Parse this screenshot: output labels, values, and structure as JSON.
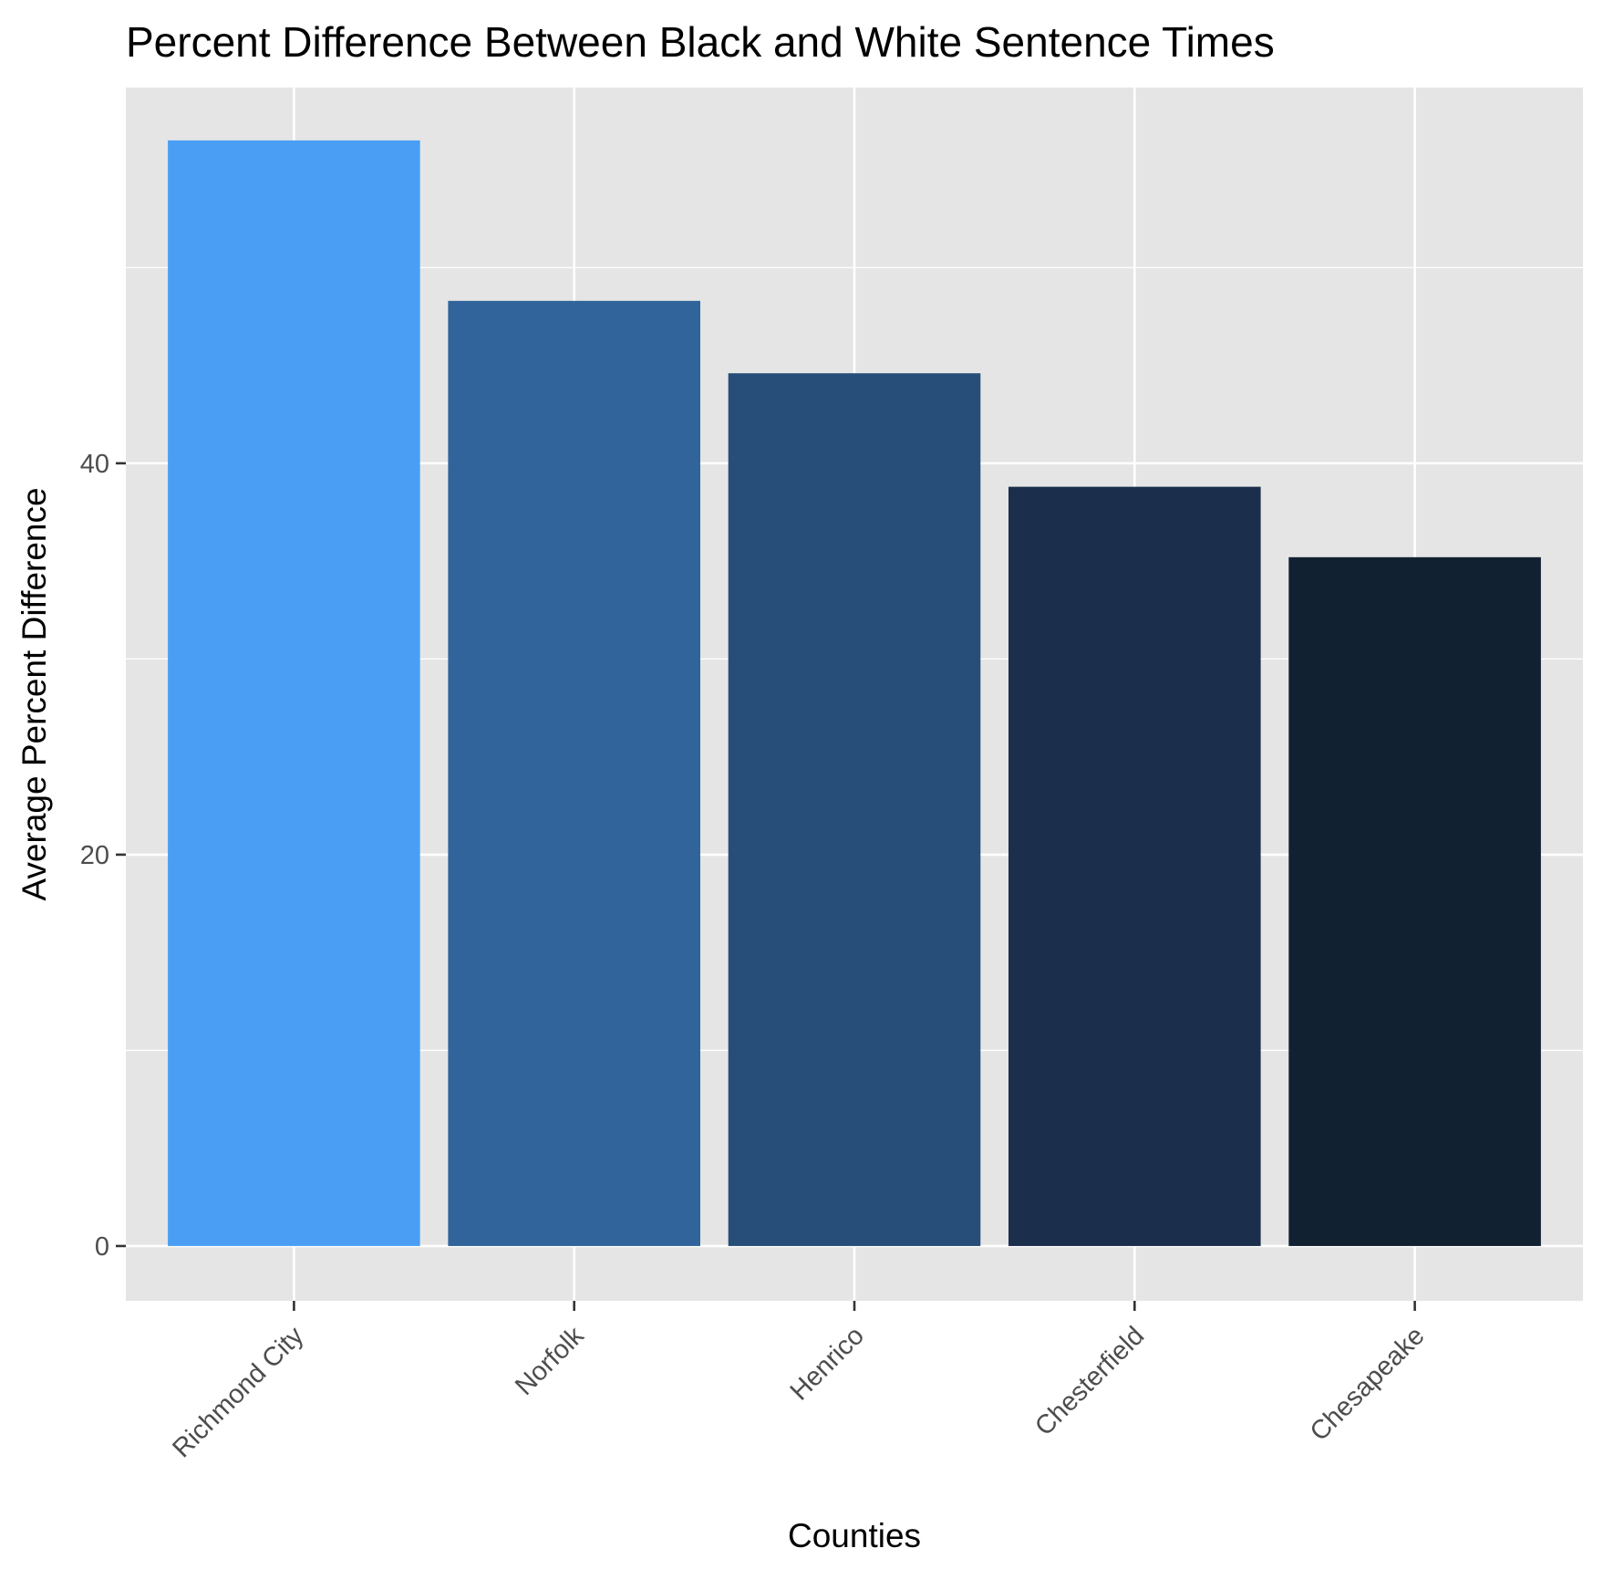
{
  "chart_data": {
    "type": "bar",
    "title": "Percent Difference Between Black and White Sentence Times",
    "xlabel": "Counties",
    "ylabel": "Average Percent Difference",
    "categories": [
      "Richmond City",
      "Norfolk",
      "Henrico",
      "Chesterfield",
      "Chesapeake"
    ],
    "values": [
      56.5,
      48.3,
      44.6,
      38.8,
      35.2
    ],
    "colors": [
      "#4a9ff4",
      "#30649a",
      "#264e78",
      "#1b2e4b",
      "#122132"
    ],
    "y_ticks": [
      0,
      20,
      40
    ],
    "ylim": [
      -2.8,
      59.2
    ],
    "grid": true,
    "background": "#e5e5e5",
    "legend": "none"
  }
}
